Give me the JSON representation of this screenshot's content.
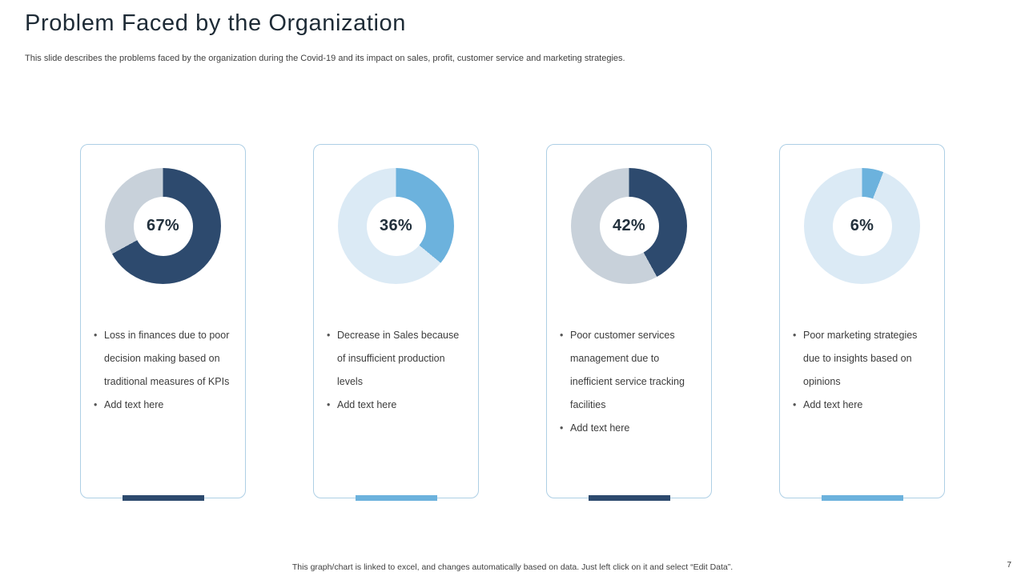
{
  "title": "Problem Faced by the Organization",
  "subtitle": "This slide describes the problems faced by the organization during the Covid-19 and its impact on sales, profit, customer service and marketing strategies.",
  "footer_note": "This graph/chart is linked to excel, and changes automatically based on data. Just left click on it and select “Edit Data”.",
  "page_number": "7",
  "colors": {
    "dark_navy": "#2d4a6e",
    "gray_track": "#c8d1da",
    "medium_blue": "#6cb2dd",
    "pale_blue_track": "#dbeaf5",
    "card_border": "#aecfe5"
  },
  "chart_data": [
    {
      "type": "donut",
      "value": 67,
      "label": "67%",
      "segment_color": "#2d4a6e",
      "track_color": "#c8d1da"
    },
    {
      "type": "donut",
      "value": 36,
      "label": "36%",
      "segment_color": "#6cb2dd",
      "track_color": "#dbeaf5"
    },
    {
      "type": "donut",
      "value": 42,
      "label": "42%",
      "segment_color": "#2d4a6e",
      "track_color": "#c8d1da"
    },
    {
      "type": "donut",
      "value": 6,
      "label": "6%",
      "segment_color": "#6cb2dd",
      "track_color": "#dbeaf5"
    }
  ],
  "cards": [
    {
      "bar_color": "#2d4a6e",
      "bullets": [
        "Loss in finances due to poor decision making based on traditional measures of KPIs",
        "Add text here"
      ]
    },
    {
      "bar_color": "#6cb2dd",
      "bullets": [
        "Decrease in Sales because of insufficient production levels",
        "Add text here"
      ]
    },
    {
      "bar_color": "#2d4a6e",
      "bullets": [
        "Poor customer services management due to inefficient service tracking facilities",
        "Add text here"
      ]
    },
    {
      "bar_color": "#6cb2dd",
      "bullets": [
        "Poor marketing strategies due to insights based on opinions",
        "Add text here"
      ]
    }
  ]
}
